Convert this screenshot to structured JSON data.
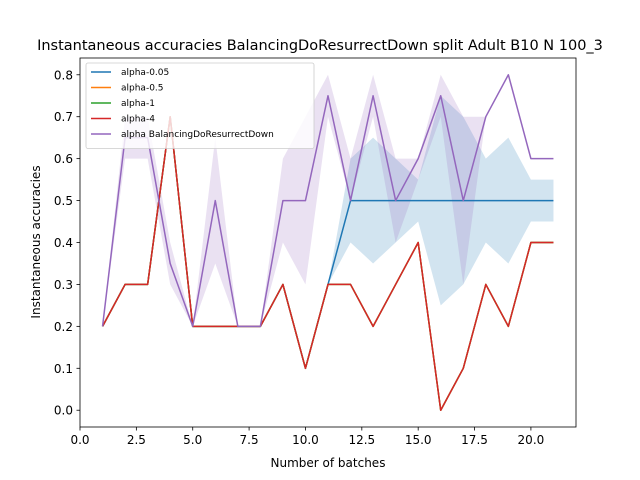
{
  "chart_data": {
    "type": "line",
    "title": "Instantaneous accuracies BalancingDoResurrectDown split Adult B10 N 100_3",
    "xlabel": "Number of batches",
    "ylabel": "Instantaneous accuracies",
    "xlim": [
      0.0,
      22.0
    ],
    "ylim": [
      -0.04,
      0.84
    ],
    "xticks": [
      0.0,
      2.5,
      5.0,
      7.5,
      10.0,
      12.5,
      15.0,
      17.5,
      20.0
    ],
    "xtick_labels": [
      "0.0",
      "2.5",
      "5.0",
      "7.5",
      "10.0",
      "12.5",
      "15.0",
      "17.5",
      "20.0"
    ],
    "yticks": [
      0.0,
      0.1,
      0.2,
      0.3,
      0.4,
      0.5,
      0.6,
      0.7,
      0.8
    ],
    "ytick_labels": [
      "0.0",
      "0.1",
      "0.2",
      "0.3",
      "0.4",
      "0.5",
      "0.6",
      "0.7",
      "0.8"
    ],
    "grid": false,
    "legend_position": "top-left",
    "x": [
      1,
      2,
      3,
      4,
      5,
      6,
      7,
      8,
      9,
      10,
      11,
      12,
      13,
      14,
      15,
      16,
      17,
      18,
      19,
      20,
      21
    ],
    "series": [
      {
        "name": "alpha-0.05",
        "color": "#1f77b4",
        "values": [
          0.2,
          0.3,
          0.3,
          0.7,
          0.2,
          0.2,
          0.2,
          0.2,
          0.3,
          0.1,
          0.3,
          0.5,
          0.5,
          0.5,
          0.5,
          0.5,
          0.5,
          0.5,
          0.5,
          0.5,
          0.5
        ],
        "band_lower": [
          0.2,
          0.3,
          0.3,
          0.7,
          0.2,
          0.2,
          0.2,
          0.2,
          0.3,
          0.1,
          0.3,
          0.4,
          0.35,
          0.4,
          0.45,
          0.25,
          0.3,
          0.4,
          0.35,
          0.45,
          0.45
        ],
        "band_upper": [
          0.2,
          0.3,
          0.3,
          0.7,
          0.2,
          0.2,
          0.2,
          0.2,
          0.3,
          0.1,
          0.3,
          0.6,
          0.65,
          0.6,
          0.55,
          0.75,
          0.7,
          0.6,
          0.65,
          0.55,
          0.55
        ]
      },
      {
        "name": "alpha-0.5",
        "color": "#ff7f0e",
        "values": [
          0.2,
          0.3,
          0.3,
          0.7,
          0.2,
          0.2,
          0.2,
          0.2,
          0.3,
          0.1,
          0.3,
          0.3,
          0.2,
          0.3,
          0.4,
          0.0,
          0.1,
          0.3,
          0.2,
          0.4,
          0.4
        ]
      },
      {
        "name": "alpha-1",
        "color": "#2ca02c",
        "values": [
          0.2,
          0.3,
          0.3,
          0.7,
          0.2,
          0.2,
          0.2,
          0.2,
          0.3,
          0.1,
          0.3,
          0.3,
          0.2,
          0.3,
          0.4,
          0.0,
          0.1,
          0.3,
          0.2,
          0.4,
          0.4
        ]
      },
      {
        "name": "alpha-4",
        "color": "#d62728",
        "values": [
          0.2,
          0.3,
          0.3,
          0.7,
          0.2,
          0.2,
          0.2,
          0.2,
          0.3,
          0.1,
          0.3,
          0.3,
          0.2,
          0.3,
          0.4,
          0.0,
          0.1,
          0.3,
          0.2,
          0.4,
          0.4
        ]
      },
      {
        "name": "alpha BalancingDoResurrectDown",
        "color": "#9467bd",
        "values": [
          0.2,
          0.65,
          0.65,
          0.35,
          0.2,
          0.5,
          0.2,
          0.2,
          0.5,
          0.5,
          0.75,
          0.5,
          0.75,
          0.5,
          0.6,
          0.75,
          0.5,
          0.7,
          0.8,
          0.6,
          0.6
        ],
        "band_lower": [
          0.2,
          0.6,
          0.6,
          0.3,
          0.2,
          0.35,
          0.2,
          0.2,
          0.4,
          0.3,
          0.7,
          0.5,
          0.7,
          0.4,
          0.55,
          0.7,
          0.3,
          0.7,
          0.8,
          0.6,
          0.6
        ],
        "band_upper": [
          0.2,
          0.7,
          0.7,
          0.4,
          0.2,
          0.65,
          0.2,
          0.2,
          0.6,
          0.7,
          0.8,
          0.6,
          0.8,
          0.6,
          0.6,
          0.8,
          0.7,
          0.7,
          0.8,
          0.6,
          0.6
        ]
      }
    ]
  }
}
